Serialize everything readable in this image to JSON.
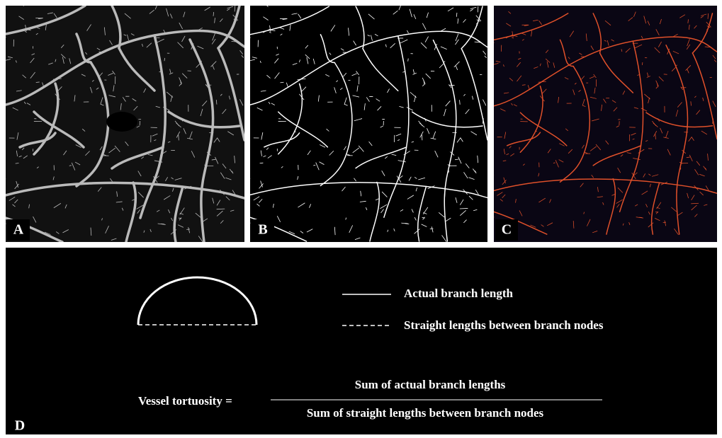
{
  "panels": [
    {
      "label": "A"
    },
    {
      "label": "B"
    },
    {
      "label": "C"
    }
  ],
  "diagram": {
    "label": "D",
    "legend": [
      {
        "text": "Actual branch length"
      },
      {
        "text": "Straight lengths between branch nodes"
      }
    ],
    "formula": {
      "lhs": "Vessel tortuosity =",
      "numerator": "Sum of actual branch lengths",
      "denominator": "Sum of straight lengths between branch nodes"
    }
  }
}
